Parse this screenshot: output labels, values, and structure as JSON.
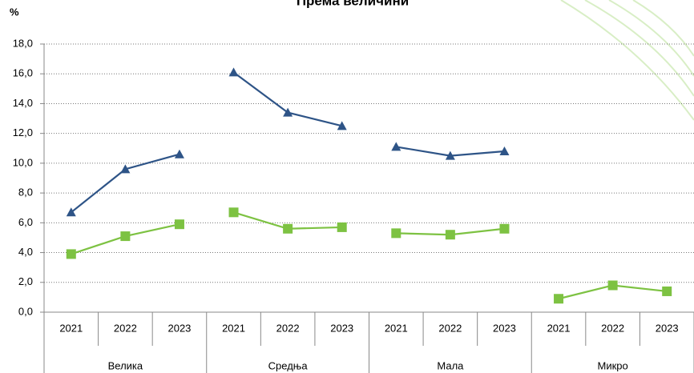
{
  "chart_data": {
    "type": "line",
    "title": "Према величини",
    "y_label": "%",
    "categories": [
      "2021",
      "2022",
      "2023",
      "2021",
      "2022",
      "2023",
      "2021",
      "2022",
      "2023",
      "2021",
      "2022",
      "2023"
    ],
    "groups": [
      "Велика",
      "Средња",
      "Мала",
      "Микро"
    ],
    "series": [
      {
        "color": "#2e5487",
        "marker": "triangle",
        "values": [
          6.7,
          9.6,
          10.6,
          16.1,
          13.4,
          12.5,
          11.1,
          10.5,
          10.8,
          null,
          null,
          null
        ]
      },
      {
        "color": "#7dc242",
        "marker": "square",
        "values": [
          3.9,
          5.1,
          5.9,
          6.7,
          5.6,
          5.7,
          5.3,
          5.2,
          5.6,
          0.9,
          1.8,
          1.4
        ]
      }
    ],
    "ylim": [
      0,
      18
    ],
    "yticks": [
      {
        "value": 0,
        "label": "0,0"
      },
      {
        "value": 2,
        "label": "2,0"
      },
      {
        "value": 4,
        "label": "4,0"
      },
      {
        "value": 6,
        "label": "6,0"
      },
      {
        "value": 8,
        "label": "8,0"
      },
      {
        "value": 10,
        "label": "10,0"
      },
      {
        "value": 12,
        "label": "12,0"
      },
      {
        "value": 14,
        "label": "14,0"
      },
      {
        "value": 16,
        "label": "16,0"
      },
      {
        "value": 18,
        "label": "18,0"
      }
    ],
    "grid": true
  }
}
